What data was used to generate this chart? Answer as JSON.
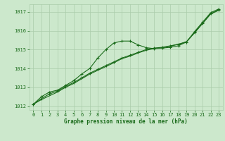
{
  "bg_color": "#cce8cc",
  "plot_bg_color": "#cce8cc",
  "grid_color": "#aaccaa",
  "line_color": "#1a6b1a",
  "marker_color": "#1a6b1a",
  "xlabel": "Graphe pression niveau de la mer (hPa)",
  "xlim": [
    -0.5,
    23.5
  ],
  "ylim": [
    1011.8,
    1017.4
  ],
  "yticks": [
    1012,
    1013,
    1014,
    1015,
    1016,
    1017
  ],
  "xticks": [
    0,
    1,
    2,
    3,
    4,
    5,
    6,
    7,
    8,
    9,
    10,
    11,
    12,
    13,
    14,
    15,
    16,
    17,
    18,
    19,
    20,
    21,
    22,
    23
  ],
  "line1_x": [
    0,
    1,
    2,
    3,
    4,
    5,
    6,
    7,
    8,
    9,
    10,
    11,
    12,
    13,
    14,
    15,
    16,
    17,
    18,
    19,
    20,
    21,
    22,
    23
  ],
  "line1_y": [
    1012.1,
    1012.5,
    1012.75,
    1012.85,
    1013.1,
    1013.35,
    1013.7,
    1014.0,
    1014.55,
    1015.0,
    1015.35,
    1015.45,
    1015.45,
    1015.25,
    1015.1,
    1015.05,
    1015.08,
    1015.12,
    1015.2,
    1015.4,
    1015.95,
    1016.45,
    1016.95,
    1017.15
  ],
  "line2_x": [
    0,
    1,
    2,
    3,
    4,
    5,
    6,
    7,
    8,
    9,
    10,
    11,
    12,
    13,
    14,
    15,
    16,
    17,
    18,
    19,
    20,
    21,
    22,
    23
  ],
  "line2_y": [
    1012.1,
    1012.4,
    1012.65,
    1012.8,
    1013.05,
    1013.25,
    1013.5,
    1013.75,
    1013.95,
    1014.15,
    1014.35,
    1014.55,
    1014.7,
    1014.85,
    1015.0,
    1015.08,
    1015.12,
    1015.2,
    1015.28,
    1015.4,
    1015.9,
    1016.4,
    1016.9,
    1017.1
  ],
  "line3_x": [
    0,
    1,
    2,
    3,
    4,
    5,
    6,
    7,
    8,
    9,
    10,
    11,
    12,
    13,
    14,
    15,
    16,
    17,
    18,
    19,
    20,
    21,
    22,
    23
  ],
  "line3_y": [
    1012.1,
    1012.35,
    1012.55,
    1012.75,
    1013.0,
    1013.2,
    1013.45,
    1013.7,
    1013.9,
    1014.1,
    1014.3,
    1014.52,
    1014.65,
    1014.82,
    1014.96,
    1015.06,
    1015.1,
    1015.18,
    1015.28,
    1015.42,
    1015.88,
    1016.38,
    1016.88,
    1017.08
  ]
}
